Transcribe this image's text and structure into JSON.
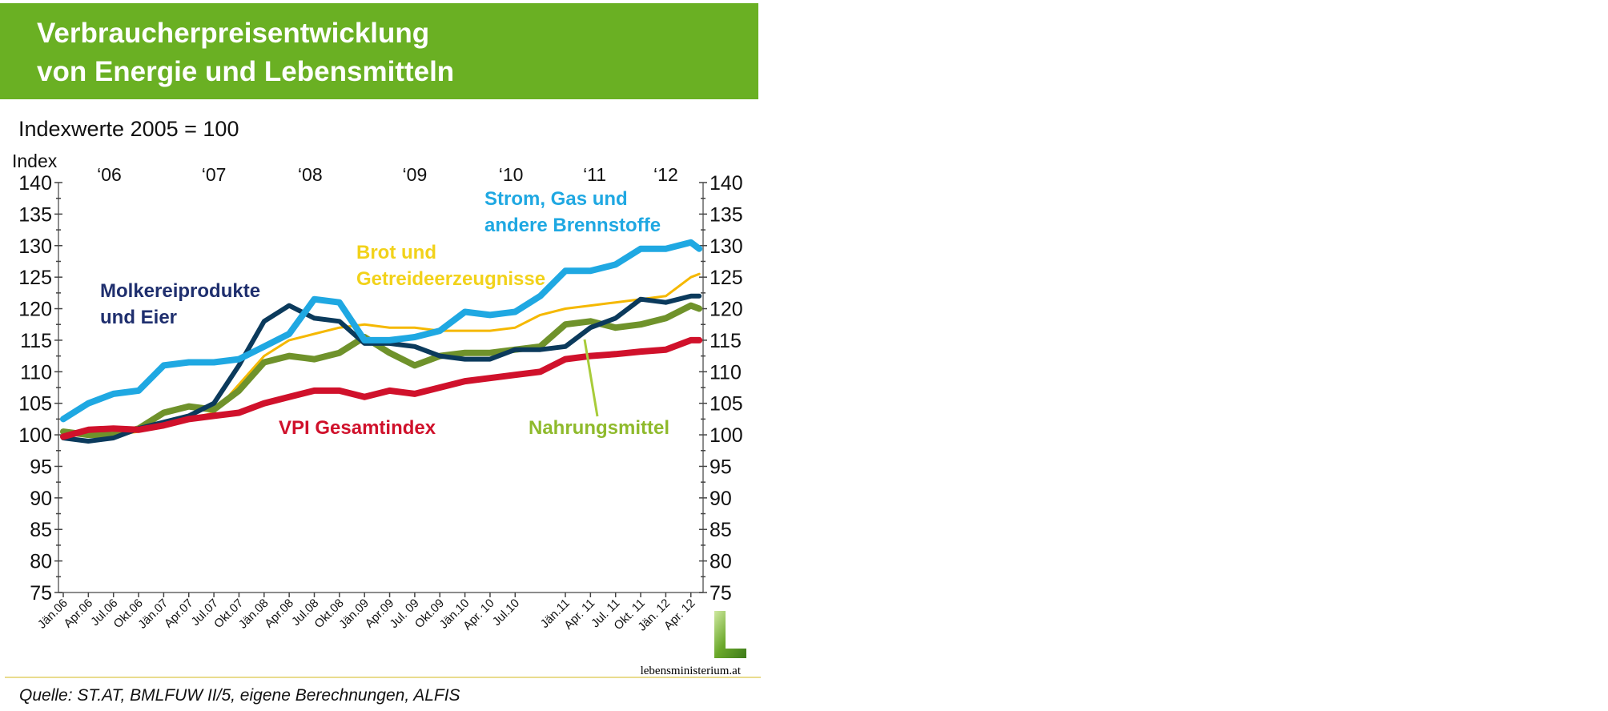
{
  "header": {
    "title_line1": "Verbraucherpreisentwicklung",
    "title_line2": "von Energie und Lebensmitteln"
  },
  "subtitle": "Indexwerte 2005 = 100",
  "source": "Quelle: ST.AT, BMLFUW II/5, eigene Berechnungen, ALFIS",
  "logo": {
    "text": "lebensministerium.at"
  },
  "colors": {
    "header": "#6ab023",
    "divider": "#e9dc8e"
  },
  "chart_data": {
    "type": "line",
    "ylabel": "Index",
    "ylim": [
      75,
      140
    ],
    "yticks": [
      75,
      80,
      85,
      90,
      95,
      100,
      105,
      110,
      115,
      120,
      125,
      130,
      135,
      140
    ],
    "year_labels": [
      {
        "label": "‘06",
        "month": 5.5
      },
      {
        "label": "‘07",
        "month": 18
      },
      {
        "label": "‘08",
        "month": 29.5
      },
      {
        "label": "‘09",
        "month": 42
      },
      {
        "label": "‘10",
        "month": 53.5
      },
      {
        "label": "‘11",
        "month": 63.5
      },
      {
        "label": "‘12",
        "month": 72
      }
    ],
    "x_tick_labels": [
      "Jän.06",
      "Apr.06",
      "Jul.06",
      "Okt.06",
      "Jän.07",
      "Apr.07",
      "Jul.07",
      "Okt.07",
      "Jän.08",
      "Apr.08",
      "Jul.08",
      "Okt.08",
      "Jän.09",
      "Apr.09",
      "Jul. 09",
      "Okt.09",
      "Jän.10",
      "Apr. 10",
      "Jul.10",
      "Jän.11",
      "Apr. 11",
      "Jul. 11",
      "Okt. 11",
      "Jän. 12",
      "Apr. 12"
    ],
    "x_tick_months": [
      0,
      3,
      6,
      9,
      12,
      15,
      18,
      21,
      24,
      27,
      30,
      33,
      36,
      39,
      42,
      45,
      48,
      51,
      54,
      60,
      63,
      66,
      69,
      72,
      75
    ],
    "x_months": [
      0,
      3,
      6,
      9,
      12,
      15,
      18,
      21,
      24,
      27,
      30,
      33,
      36,
      39,
      42,
      45,
      48,
      51,
      54,
      57,
      60,
      63,
      66,
      69,
      72,
      75,
      76
    ],
    "series": [
      {
        "name": "Strom, Gas und andere Brennstoffe",
        "label_lines": [
          "Strom, Gas und",
          "andere Brennstoffe"
        ],
        "color": "#1fa8e2",
        "label_color": "#1fa8e2",
        "values": [
          102.5,
          105,
          106.5,
          107,
          111,
          111.5,
          111.5,
          112,
          114,
          116,
          121.5,
          121,
          115,
          115,
          115.5,
          116.5,
          119.5,
          119,
          119.5,
          122,
          126,
          126,
          127,
          129.5,
          129.5,
          130.5,
          129.5
        ]
      },
      {
        "name": "Brot und Getreideerzeugnisse",
        "label_lines": [
          "Brot und",
          "Getreideerzeugnisse"
        ],
        "color": "#f5b800",
        "label_color": "#f2d21a",
        "values": [
          100,
          100,
          100,
          100.5,
          101.5,
          102.5,
          103.5,
          108,
          112.5,
          115,
          116,
          117,
          117.5,
          117,
          117,
          116.5,
          116.5,
          116.5,
          117,
          119,
          120,
          120.5,
          121,
          121.5,
          122,
          125,
          125.5
        ]
      },
      {
        "name": "Molkereiprodukte und Eier",
        "label_lines": [
          "Molkereiprodukte",
          "und Eier"
        ],
        "color": "#0b3a5c",
        "label_color": "#1f2f6e",
        "values": [
          99.5,
          99,
          99.5,
          101,
          102,
          103,
          105,
          111,
          118,
          120.5,
          118.5,
          118,
          114.5,
          114.5,
          114,
          112.5,
          112,
          112,
          113.5,
          113.5,
          114,
          117,
          118.5,
          121.5,
          121,
          122,
          122
        ]
      },
      {
        "name": "Nahrungsmittel",
        "label_lines": [
          "Nahrungsmittel"
        ],
        "color": "#6f922b",
        "label_color": "#8fba2c",
        "values": [
          100.5,
          100,
          100,
          101,
          103.5,
          104.5,
          104,
          107,
          111.5,
          112.5,
          112,
          113,
          115.5,
          113,
          111,
          112.5,
          113,
          113,
          113.5,
          114,
          117.5,
          118,
          117,
          117.5,
          118.5,
          120.5,
          120
        ]
      },
      {
        "name": "VPI Gesamtindex",
        "label_lines": [
          "VPI Gesamtindex"
        ],
        "color": "#d0112b",
        "label_color": "#d0112b",
        "values": [
          99.7,
          100.8,
          101,
          100.8,
          101.5,
          102.5,
          103,
          103.5,
          105,
          106,
          107,
          107,
          106,
          107,
          106.5,
          107.5,
          108.5,
          109,
          109.5,
          110,
          112,
          112.5,
          112.8,
          113.2,
          113.5,
          115,
          115
        ]
      }
    ]
  }
}
